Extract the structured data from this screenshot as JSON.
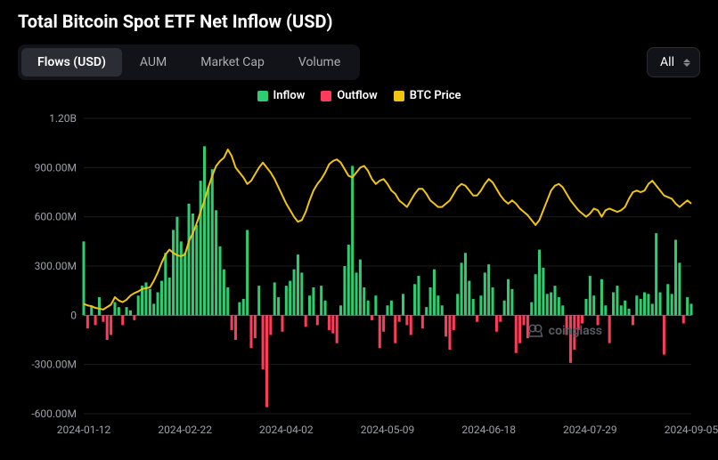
{
  "title": "Total Bitcoin Spot ETF Net Inflow (USD)",
  "tabs": {
    "items": [
      "Flows (USD)",
      "AUM",
      "Market Cap",
      "Volume"
    ],
    "active_index": 0
  },
  "range_select": {
    "value": "All"
  },
  "legend": {
    "inflow": {
      "label": "Inflow",
      "color": "#2ecc71"
    },
    "outflow": {
      "label": "Outflow",
      "color": "#ff3b5c"
    },
    "btc": {
      "label": "BTC Price",
      "color": "#f1c40f"
    }
  },
  "watermark": "coinglass",
  "chart": {
    "type": "bar+line",
    "background_color": "#000000",
    "axis_color": "#6b6e75",
    "grid_color": "#1a1c21",
    "text_color": "#9ca0a8",
    "font_size": 12,
    "ylim": [
      -600000000,
      1200000000
    ],
    "yticks": [
      -600000000,
      -300000000,
      0,
      300000000,
      600000000,
      900000000,
      1200000000
    ],
    "ytick_labels": [
      "-600.00M",
      "-300.00M",
      "0",
      "300.00M",
      "600.00M",
      "900.00M",
      "1.20B"
    ],
    "xtick_labels": [
      "2024-01-12",
      "2024-02-22",
      "2024-04-02",
      "2024-05-09",
      "2024-06-18",
      "2024-07-29",
      "2024-09-05"
    ],
    "flows": [
      450,
      -80,
      60,
      -60,
      110,
      -40,
      -150,
      -120,
      80,
      50,
      -60,
      50,
      30,
      -30,
      120,
      180,
      200,
      160,
      70,
      140,
      210,
      380,
      230,
      520,
      600,
      450,
      380,
      680,
      620,
      550,
      820,
      1030,
      780,
      890,
      640,
      420,
      280,
      170,
      -90,
      -150,
      80,
      100,
      520,
      -200,
      -140,
      180,
      -330,
      -560,
      -120,
      200,
      110,
      -100,
      180,
      210,
      280,
      370,
      260,
      -70,
      120,
      170,
      -60,
      180,
      90,
      -90,
      -110,
      -170,
      60,
      300,
      430,
      910,
      260,
      340,
      170,
      90,
      -30,
      120,
      -200,
      -100,
      60,
      90,
      -170,
      -40,
      130,
      -60,
      -120,
      190,
      240,
      -80,
      50,
      170,
      280,
      120,
      60,
      -130,
      -210,
      -90,
      130,
      320,
      380,
      210,
      100,
      -40,
      120,
      260,
      310,
      170,
      -100,
      -40,
      90,
      220,
      160,
      -230,
      -170,
      -60,
      -140,
      80,
      250,
      400,
      290,
      130,
      140,
      180,
      110,
      60,
      -120,
      -290,
      -210,
      -90,
      -50,
      100,
      240,
      120,
      -60,
      220,
      60,
      -170,
      140,
      180,
      60,
      90,
      40,
      -60,
      120,
      100,
      140,
      130,
      70,
      500,
      140,
      -240,
      190,
      130,
      460,
      320,
      -50,
      110,
      70
    ],
    "btc_price": [
      70,
      60,
      55,
      45,
      40,
      35,
      50,
      65,
      110,
      90,
      80,
      95,
      120,
      135,
      145,
      160,
      165,
      170,
      210,
      260,
      320,
      370,
      400,
      380,
      365,
      360,
      370,
      450,
      500,
      560,
      630,
      700,
      780,
      850,
      910,
      940,
      960,
      1010,
      970,
      900,
      870,
      840,
      800,
      820,
      860,
      900,
      930,
      900,
      870,
      830,
      780,
      730,
      680,
      640,
      600,
      570,
      580,
      630,
      700,
      760,
      800,
      830,
      870,
      920,
      940,
      950,
      930,
      890,
      850,
      840,
      870,
      900,
      910,
      880,
      830,
      800,
      820,
      830,
      800,
      760,
      740,
      700,
      680,
      660,
      700,
      740,
      770,
      770,
      740,
      700,
      680,
      660,
      660,
      680,
      700,
      740,
      780,
      800,
      790,
      760,
      730,
      730,
      760,
      800,
      830,
      810,
      770,
      730,
      700,
      680,
      700,
      680,
      650,
      630,
      610,
      580,
      550,
      580,
      640,
      700,
      760,
      790,
      800,
      780,
      740,
      700,
      670,
      640,
      620,
      600,
      620,
      650,
      640,
      600,
      640,
      650,
      640,
      630,
      640,
      660,
      710,
      750,
      760,
      750,
      760,
      800,
      820,
      790,
      760,
      730,
      720,
      710,
      680,
      660,
      680,
      700,
      680
    ]
  }
}
